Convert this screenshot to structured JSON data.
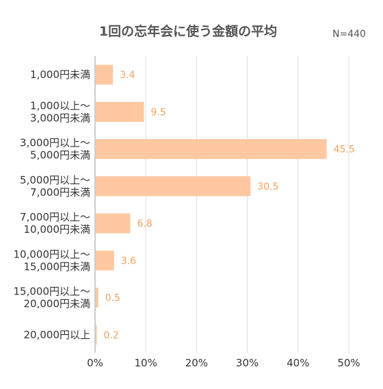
{
  "chart_data": {
    "type": "bar",
    "orientation": "horizontal",
    "title": "1回の忘年会に使う金額の平均",
    "sample_note": "N=440",
    "categories": [
      [
        "1,000円未満"
      ],
      [
        "1,000以上〜",
        "3,000円未満"
      ],
      [
        "3,000円以上〜",
        "5,000円未満"
      ],
      [
        "5,000円以上〜",
        "7,000円未満"
      ],
      [
        "7,000円以上〜",
        "10,000円未満"
      ],
      [
        "10,000円以上〜",
        "15,000円未満"
      ],
      [
        "15,000円以上〜",
        "20,000円未満"
      ],
      [
        "20,000円以上"
      ]
    ],
    "values": [
      3.4,
      9.5,
      45.5,
      30.5,
      6.8,
      3.6,
      0.5,
      0.2
    ],
    "value_labels": [
      "3.4",
      "9.5",
      "45.5",
      "30.5",
      "6.8",
      "3.6",
      "0.5",
      "0.2"
    ],
    "xlim": [
      0,
      50
    ],
    "xticks": [
      0,
      10,
      20,
      30,
      40,
      50
    ],
    "xtick_labels": [
      "0%",
      "10%",
      "20%",
      "30%",
      "40%",
      "50%"
    ],
    "grid": true,
    "colors": {
      "bar": "#ffc8a0",
      "value_label": "#f5a15e",
      "grid": "#dddddd",
      "axis": "#bbbbbb"
    }
  }
}
